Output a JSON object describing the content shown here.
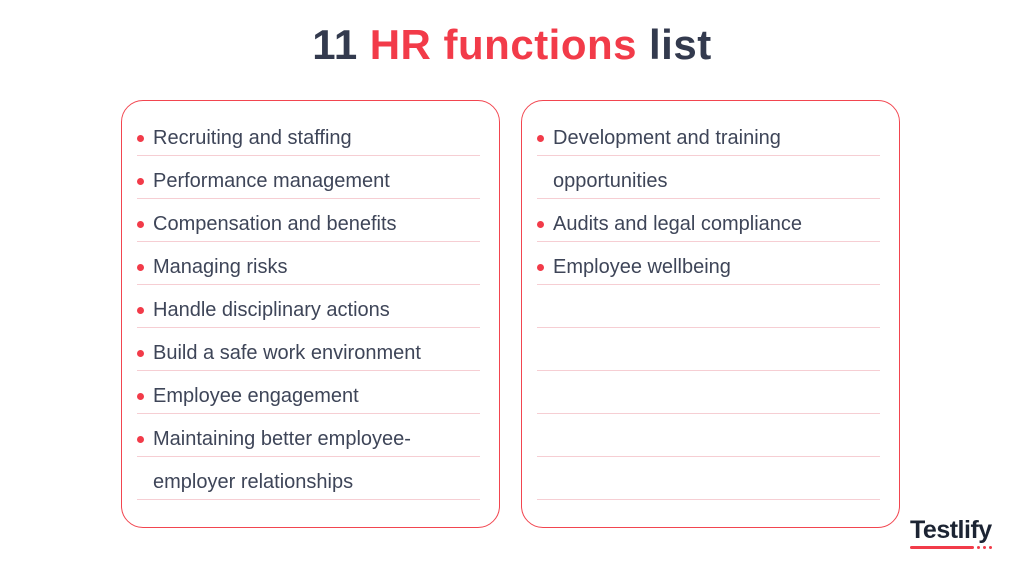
{
  "title": {
    "part1": "11",
    "part2": "HR functions",
    "part3": "list"
  },
  "colors": {
    "red": "#f23b49",
    "title_navy": "#333a4e",
    "text_navy": "#3e4558",
    "panel_border": "#f2454f",
    "rule_pink": "#f6ced3",
    "logo_navy": "#1c2433"
  },
  "left_panel": {
    "rows": [
      {
        "text": "Recruiting and staffing",
        "bullet": true
      },
      {
        "text": "Performance management",
        "bullet": true
      },
      {
        "text": "Compensation and benefits",
        "bullet": true
      },
      {
        "text": "Managing risks",
        "bullet": true
      },
      {
        "text": "Handle disciplinary actions",
        "bullet": true
      },
      {
        "text": "Build a safe work environment",
        "bullet": true
      },
      {
        "text": "Employee engagement",
        "bullet": true
      },
      {
        "text": "Maintaining better employee-",
        "bullet": true
      },
      {
        "text": "employer relationships",
        "bullet": false
      }
    ]
  },
  "right_panel": {
    "rows": [
      {
        "text": "Development and training",
        "bullet": true
      },
      {
        "text": "opportunities",
        "bullet": false
      },
      {
        "text": "Audits and legal compliance",
        "bullet": true
      },
      {
        "text": "Employee wellbeing",
        "bullet": true
      },
      {
        "text": "",
        "bullet": false
      },
      {
        "text": "",
        "bullet": false
      },
      {
        "text": "",
        "bullet": false
      },
      {
        "text": "",
        "bullet": false
      },
      {
        "text": "",
        "bullet": false
      }
    ]
  },
  "logo": {
    "text": "Testlify"
  }
}
